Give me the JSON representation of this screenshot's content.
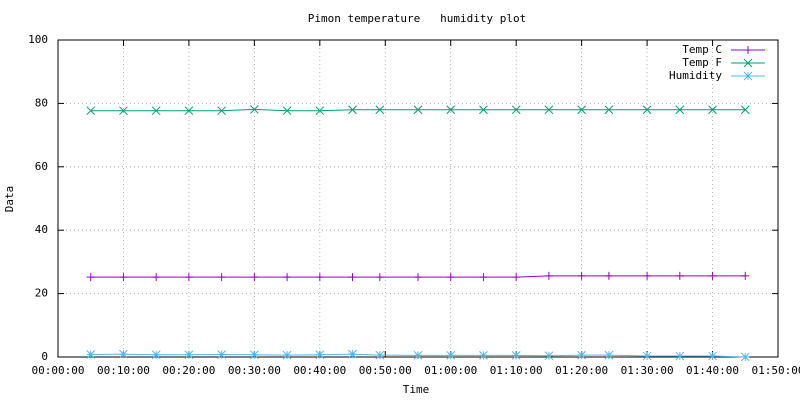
{
  "chart_data": {
    "type": "line",
    "title": "Pimon temperature   humidity plot",
    "xlabel": "Time",
    "ylabel": "Data",
    "x": [
      300,
      600,
      900,
      1200,
      1500,
      1800,
      2100,
      2400,
      2700,
      2950,
      3300,
      3600,
      3900,
      4200,
      4500,
      4800,
      5050,
      5400,
      5700,
      6000,
      6300
    ],
    "series": [
      {
        "name": "Temp C",
        "color": "#9400d3",
        "marker": "plus",
        "values": [
          25.2,
          25.2,
          25.2,
          25.2,
          25.2,
          25.2,
          25.2,
          25.2,
          25.2,
          25.2,
          25.2,
          25.2,
          25.2,
          25.2,
          25.6,
          25.6,
          25.6,
          25.6,
          25.6,
          25.6,
          25.6
        ]
      },
      {
        "name": "Temp F",
        "color": "#009e73",
        "marker": "cross",
        "values": [
          77.7,
          77.7,
          77.7,
          77.7,
          77.7,
          78.1,
          77.7,
          77.7,
          78.0,
          78.0,
          78.0,
          78.0,
          78.0,
          78.0,
          78.0,
          78.0,
          78.0,
          78.0,
          78.0,
          78.0,
          78.0
        ]
      },
      {
        "name": "Humidity",
        "color": "#56b4e9",
        "marker": "star",
        "values": [
          0.8,
          0.9,
          0.7,
          0.7,
          0.8,
          0.7,
          0.6,
          0.7,
          0.9,
          0.6,
          0.5,
          0.5,
          0.5,
          0.5,
          0.4,
          0.6,
          0.6,
          0.3,
          0.3,
          0.3,
          0.0
        ]
      }
    ],
    "xlim": [
      0,
      6600
    ],
    "xticks": [
      {
        "value": 0,
        "label": "00:00:00"
      },
      {
        "value": 600,
        "label": "00:10:00"
      },
      {
        "value": 1200,
        "label": "00:20:00"
      },
      {
        "value": 1800,
        "label": "00:30:00"
      },
      {
        "value": 2400,
        "label": "00:40:00"
      },
      {
        "value": 3000,
        "label": "00:50:00"
      },
      {
        "value": 3600,
        "label": "01:00:00"
      },
      {
        "value": 4200,
        "label": "01:10:00"
      },
      {
        "value": 4800,
        "label": "01:20:00"
      },
      {
        "value": 5400,
        "label": "01:30:00"
      },
      {
        "value": 6000,
        "label": "01:40:00"
      },
      {
        "value": 6600,
        "label": "01:50:00"
      }
    ],
    "ylim": [
      0,
      100
    ],
    "yticks": [
      0,
      20,
      40,
      60,
      80,
      100
    ],
    "grid": true,
    "legend": "top-right"
  }
}
